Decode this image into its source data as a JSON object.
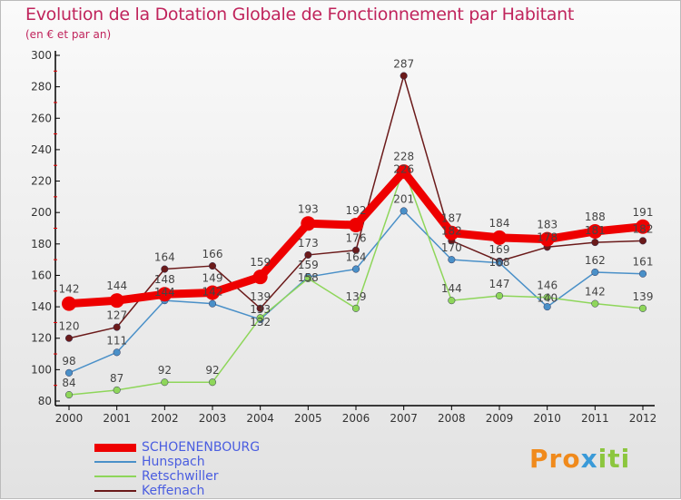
{
  "chart_data": {
    "type": "line",
    "title": "Evolution de la Dotation Globale de Fonctionnement par Habitant",
    "subtitle": "(en € et par an)",
    "x": [
      "2000",
      "2001",
      "2002",
      "2003",
      "2004",
      "2005",
      "2006",
      "2007",
      "2008",
      "2009",
      "2010",
      "2011",
      "2012"
    ],
    "ylim": [
      80,
      300
    ],
    "yticks": [
      80,
      100,
      120,
      140,
      160,
      180,
      200,
      220,
      240,
      260,
      280,
      300
    ],
    "series": [
      {
        "name": "SCHOENENBOURG",
        "color": "#ee0000",
        "values": [
          142,
          144,
          148,
          149,
          159,
          193,
          192,
          226,
          187,
          184,
          183,
          188,
          191
        ]
      },
      {
        "name": "Hunspach",
        "color": "#4a90c8",
        "values": [
          98,
          111,
          144,
          142,
          132,
          159,
          164,
          201,
          170,
          168,
          140,
          162,
          161
        ]
      },
      {
        "name": "Retschwiller",
        "color": "#8ed65a",
        "values": [
          84,
          87,
          92,
          92,
          133,
          158,
          139,
          228,
          144,
          147,
          146,
          142,
          139
        ]
      },
      {
        "name": "Keffenach",
        "color": "#6b1a1a",
        "values": [
          120,
          127,
          164,
          166,
          139,
          173,
          176,
          287,
          182,
          169,
          178,
          181,
          182
        ]
      }
    ]
  },
  "logo": "Proxiti"
}
